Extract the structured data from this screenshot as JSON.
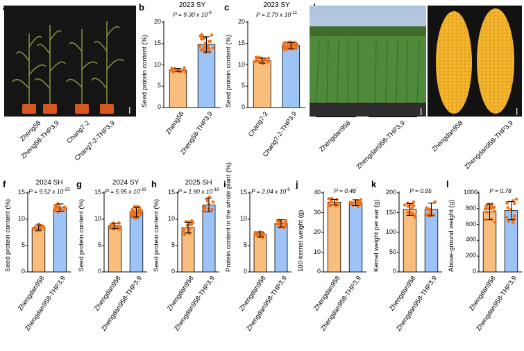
{
  "colors": {
    "orange": "#F9BE7E",
    "orange_dot": "#F0731A",
    "blue": "#9EC3F6",
    "blue_dot": "#F0731A",
    "photo_dark": "#1c1c1c"
  },
  "photos": {
    "a": {
      "letter": "a",
      "labels": [
        "Zheng58",
        "Zheng58-THP3,9",
        "Chang7-2",
        "Chang7-2-THP3,9"
      ]
    },
    "d": {
      "letter": "d",
      "labels": [
        "Zhengdan958",
        "Zhengdan958-THP3,9"
      ]
    },
    "e": {
      "letter": "e",
      "labels": [
        "Zhengdan958",
        "Zhengdan958-THP3,9"
      ]
    }
  },
  "chart_data": [
    {
      "id": "b",
      "letter": "b",
      "type": "bar",
      "title": "2023 SY",
      "p_main": "P = 9.30 x 10",
      "p_exp": "-9",
      "ylabel": "Seed protein content (%)",
      "ylim": [
        0,
        20
      ],
      "yticks": [
        0,
        5,
        10,
        15,
        20
      ],
      "categories": [
        "Zheng58",
        "Zheng58-THP3,9"
      ],
      "values": [
        8.8,
        14.8
      ],
      "err": [
        0.4,
        1.8
      ]
    },
    {
      "id": "c",
      "letter": "c",
      "type": "bar",
      "title": "2023 SY",
      "p_main": "P = 2.79 x 10",
      "p_exp": "-11",
      "ylabel": "Seed protein content (%)",
      "ylim": [
        0,
        20
      ],
      "yticks": [
        0,
        5,
        10,
        15,
        20
      ],
      "categories": [
        "Chang7-2",
        "Chang7-2-THP3,9"
      ],
      "values": [
        11.0,
        14.5
      ],
      "err": [
        0.6,
        0.7
      ]
    },
    {
      "id": "f",
      "letter": "f",
      "type": "bar",
      "title": "2024 SH",
      "p_main": "P = 9.52 x 10",
      "p_exp": "-25",
      "ylabel": "Seed protein content (%)",
      "ylim": [
        0,
        15
      ],
      "yticks": [
        0,
        5,
        10,
        15
      ],
      "categories": [
        "Zhengdan958",
        "Zhengdan958-THP3,9"
      ],
      "values": [
        8.4,
        12.2
      ],
      "err": [
        0.5,
        0.7
      ]
    },
    {
      "id": "g",
      "letter": "g",
      "type": "bar",
      "title": "2024 SY",
      "p_main": "P = 5.95 x 10",
      "p_exp": "-33",
      "ylabel": "Seed protein content (%)",
      "ylim": [
        0,
        15
      ],
      "yticks": [
        0,
        5,
        10,
        15
      ],
      "categories": [
        "Zhengdan958",
        "Zhengdan958-THP3,9"
      ],
      "values": [
        8.7,
        11.3
      ],
      "err": [
        0.5,
        0.9
      ]
    },
    {
      "id": "h",
      "letter": "h",
      "type": "bar",
      "title": "2025 SH",
      "p_main": "P = 1.90 x 10",
      "p_exp": "-18",
      "ylabel": "Seed protein content (%)",
      "ylim": [
        0,
        15
      ],
      "yticks": [
        0,
        5,
        10,
        15
      ],
      "categories": [
        "Zhengdan958",
        "Zhengdan958-THP3,9"
      ],
      "values": [
        8.4,
        12.7
      ],
      "err": [
        1.0,
        1.3
      ]
    },
    {
      "id": "i",
      "letter": "i",
      "type": "bar",
      "title": "",
      "p_main": "P = 2.04 x 10",
      "p_exp": "-6",
      "ylabel": "Protein content in the whole plant (%)",
      "ylim": [
        0,
        15
      ],
      "yticks": [
        0,
        5,
        10,
        15
      ],
      "categories": [
        "Zhengdan958",
        "Zhengdan958-THP3,9"
      ],
      "values": [
        7.1,
        9.2
      ],
      "err": [
        0.5,
        0.7
      ]
    },
    {
      "id": "j",
      "letter": "j",
      "type": "bar",
      "title": "",
      "p_main": "P = 0.48",
      "p_exp": "",
      "ylabel": "100-kernel weight (g)",
      "ylim": [
        0,
        40
      ],
      "yticks": [
        0,
        10,
        20,
        30,
        40
      ],
      "categories": [
        "Zhengdan958",
        "Zhengdan958-THP3,9"
      ],
      "values": [
        35.3,
        35.0
      ],
      "err": [
        1.4,
        1.5
      ]
    },
    {
      "id": "k",
      "letter": "k",
      "type": "bar",
      "title": "",
      "p_main": "P = 0.95",
      "p_exp": "",
      "ylabel": "Kernel weight per ear (g)",
      "ylim": [
        0,
        200
      ],
      "yticks": [
        0,
        50,
        100,
        150,
        200
      ],
      "categories": [
        "Zhengdan958",
        "Zhengdan958-THP3,9"
      ],
      "values": [
        158,
        158
      ],
      "err": [
        15,
        16
      ]
    },
    {
      "id": "l",
      "letter": "l",
      "type": "bar",
      "title": "",
      "p_main": "P = 0.78",
      "p_exp": "",
      "ylabel": "Above-ground weight (g)",
      "ylim": [
        0,
        1000
      ],
      "yticks": [
        0,
        200,
        400,
        600,
        800,
        1000
      ],
      "categories": [
        "Zhengdan958",
        "Zhengdan958-THP3,9"
      ],
      "values": [
        760,
        775
      ],
      "err": [
        100,
        115
      ]
    }
  ]
}
